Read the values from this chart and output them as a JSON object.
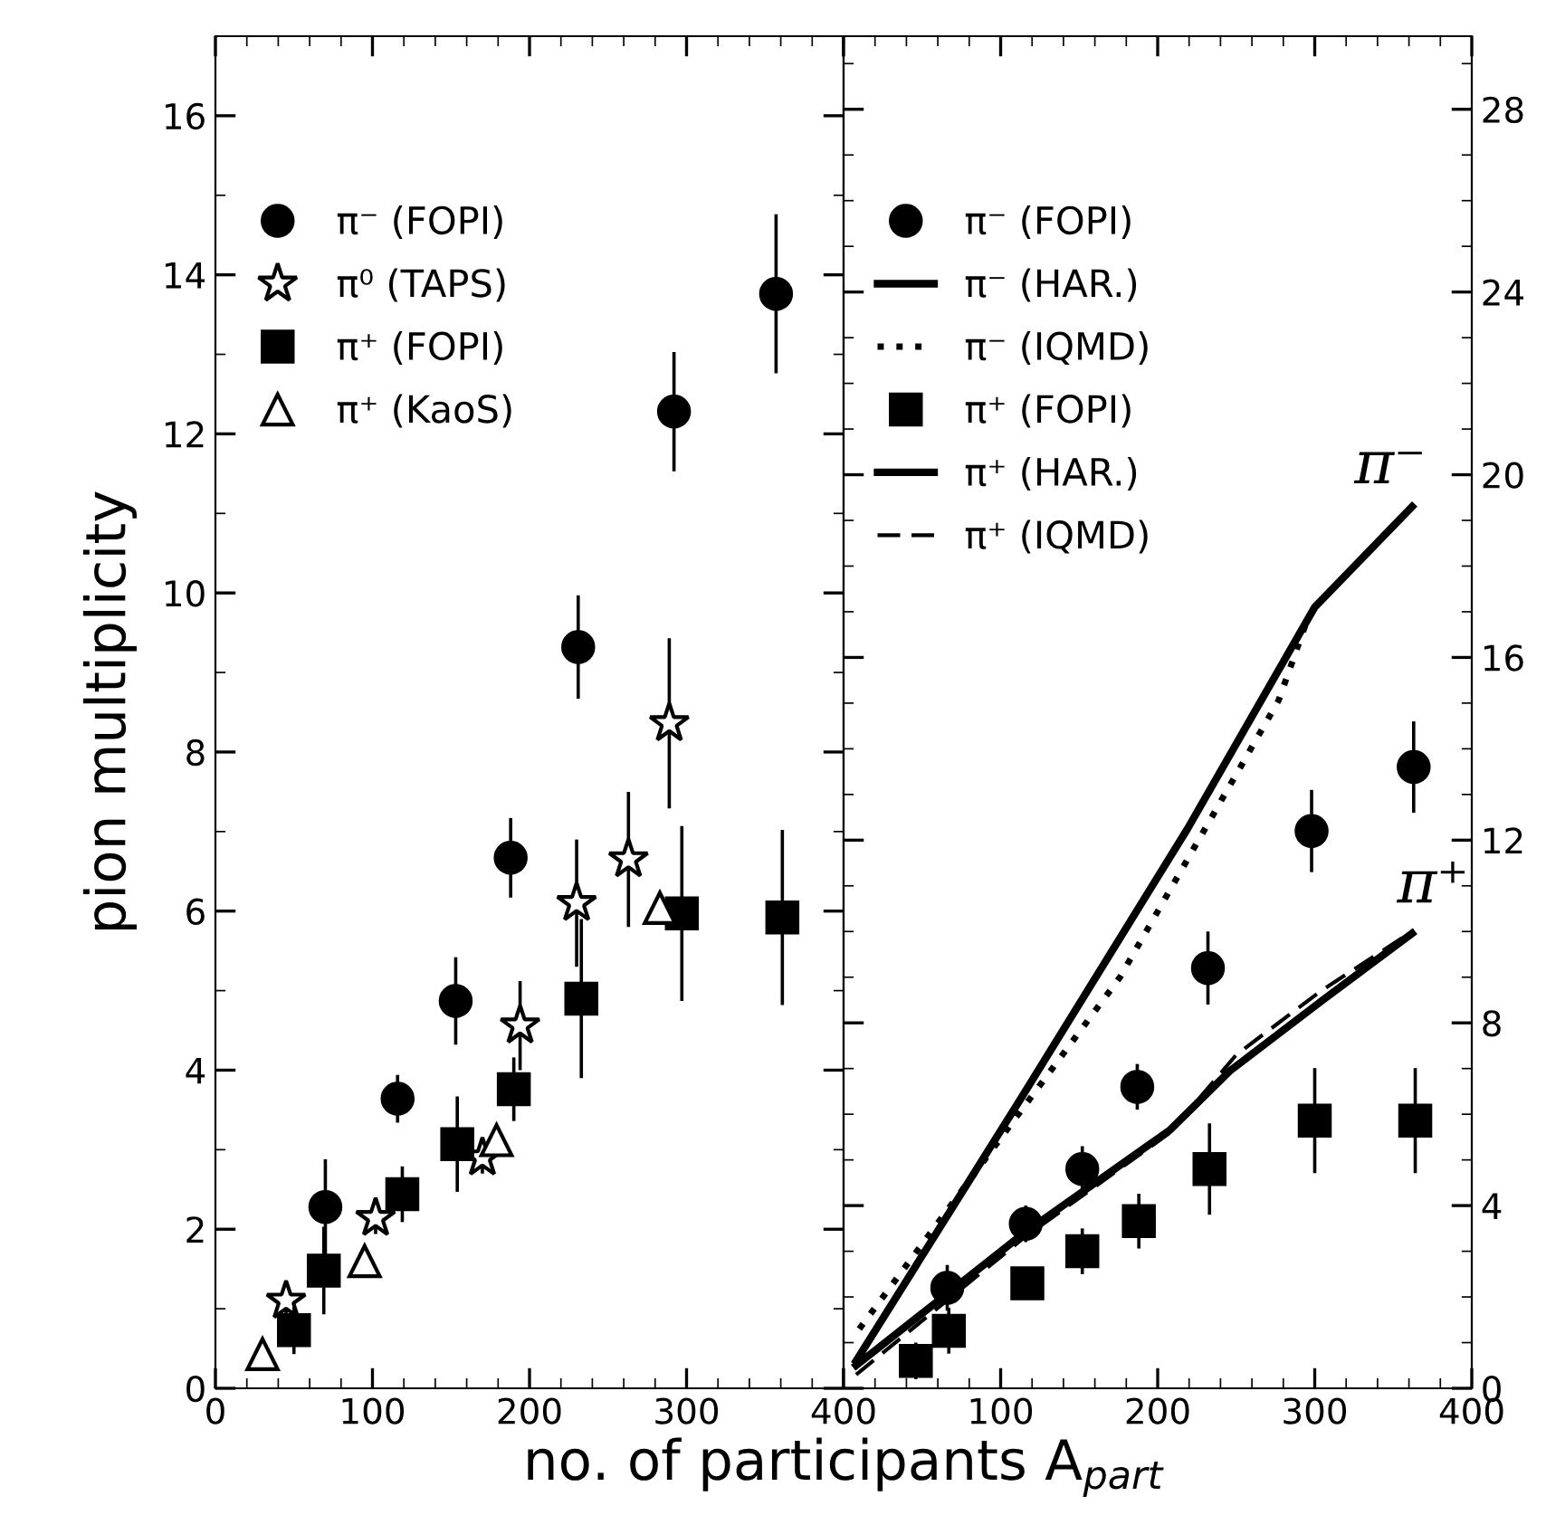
{
  "chart_data": [
    {
      "type": "scatter",
      "xlabel": "no. of participants A$_{part}$",
      "ylabel": "pion multiplicity",
      "xlim": [
        0,
        400
      ],
      "ylim": [
        0,
        17
      ],
      "xticks": [
        0,
        100,
        200,
        300,
        400
      ],
      "yticks": [
        0,
        2,
        4,
        6,
        8,
        10,
        12,
        14,
        16
      ],
      "legend": "top left",
      "grid": false,
      "series": [
        {
          "name": "π⁻ (FOPI)",
          "color": "#000000",
          "marker": "circle",
          "x": [
            70,
            116,
            153,
            188,
            231,
            292,
            357
          ],
          "values": [
            2.28,
            3.64,
            4.87,
            6.67,
            9.32,
            12.28,
            13.76
          ],
          "errors": [
            0.6,
            0.3,
            0.55,
            0.5,
            0.65,
            0.75,
            1.0
          ]
        },
        {
          "name": "π⁰ (TAPS)",
          "color": "#000000",
          "marker": "star",
          "x": [
            45,
            102,
            170,
            194,
            230,
            263,
            289
          ],
          "values": [
            1.1,
            2.14,
            2.9,
            4.56,
            6.1,
            6.65,
            8.36
          ],
          "errors": [
            0.2,
            0.2,
            0.2,
            0.56,
            0.8,
            0.85,
            1.07
          ]
        },
        {
          "name": "π⁺ (FOPI)",
          "color": "#000000",
          "marker": "square",
          "x": [
            50,
            69,
            119,
            154,
            190,
            233,
            297,
            361
          ],
          "values": [
            0.73,
            1.48,
            2.44,
            3.07,
            3.76,
            4.9,
            5.97,
            5.92
          ],
          "errors": [
            0.3,
            0.55,
            0.35,
            0.6,
            0.4,
            1.0,
            1.1,
            1.1
          ]
        },
        {
          "name": "π⁺ (KaoS)",
          "color": "#000000",
          "marker": "triangle",
          "x": [
            30,
            95,
            179,
            283
          ],
          "values": [
            0.43,
            1.6,
            3.12,
            6.04
          ]
        }
      ]
    },
    {
      "type": "scatter",
      "xlim": [
        0,
        400
      ],
      "ylim": [
        0,
        29.6
      ],
      "xticks": [
        {
          "value": 0,
          "label": null
        },
        100,
        200,
        300,
        400
      ],
      "yticks": [
        0,
        4,
        8,
        12,
        16,
        20,
        24,
        28
      ],
      "legend": "top left",
      "grid": false,
      "annotations": [
        "π⁻",
        "π⁺"
      ],
      "series": [
        {
          "name": "π⁻ (FOPI)",
          "color": "#000000",
          "marker": "circle",
          "x": [
            66,
            116,
            152,
            187,
            232,
            298,
            363
          ],
          "values": [
            2.2,
            3.6,
            4.8,
            6.6,
            9.2,
            12.2,
            13.6
          ],
          "errors": [
            0.5,
            0.4,
            0.5,
            0.5,
            0.8,
            0.9,
            1.0
          ]
        },
        {
          "name": "π⁻ (HAR.)",
          "type": "line",
          "color": "#000000",
          "line_style": "solid",
          "x": [
            8,
            113,
            219,
            300,
            362
          ],
          "values": [
            0.6,
            6.35,
            12.25,
            17.1,
            19.3
          ]
        },
        {
          "name": "π⁻ (IQMD)",
          "type": "line",
          "color": "#000000",
          "line_style": "dotted",
          "x": [
            10,
            176,
            277,
            296
          ],
          "values": [
            1.3,
            9.0,
            15.06,
            16.9
          ]
        },
        {
          "name": "π⁺ (FOPI)",
          "color": "#000000",
          "marker": "square",
          "x": [
            46,
            67,
            117,
            152,
            188,
            233,
            300,
            364
          ],
          "values": [
            0.6,
            1.26,
            2.3,
            3.0,
            3.66,
            4.8,
            5.86,
            5.86
          ],
          "errors": [
            0.4,
            0.5,
            0.3,
            0.5,
            0.6,
            1.0,
            1.15,
            1.15
          ]
        },
        {
          "name": "π⁺ (HAR.)",
          "type": "line",
          "color": "#000000",
          "line_style": "solid",
          "x": [
            8,
            115,
            208,
            246,
            304,
            362
          ],
          "values": [
            0.5,
            3.4,
            5.66,
            6.95,
            8.47,
            9.96
          ]
        },
        {
          "name": "π⁺ (IQMD)",
          "type": "line",
          "color": "#000000",
          "line_style": "dashed",
          "x": [
            8,
            115,
            208,
            250,
            304,
            362
          ],
          "values": [
            0.3,
            3.3,
            5.6,
            7.3,
            8.7,
            10.0
          ]
        }
      ]
    }
  ]
}
